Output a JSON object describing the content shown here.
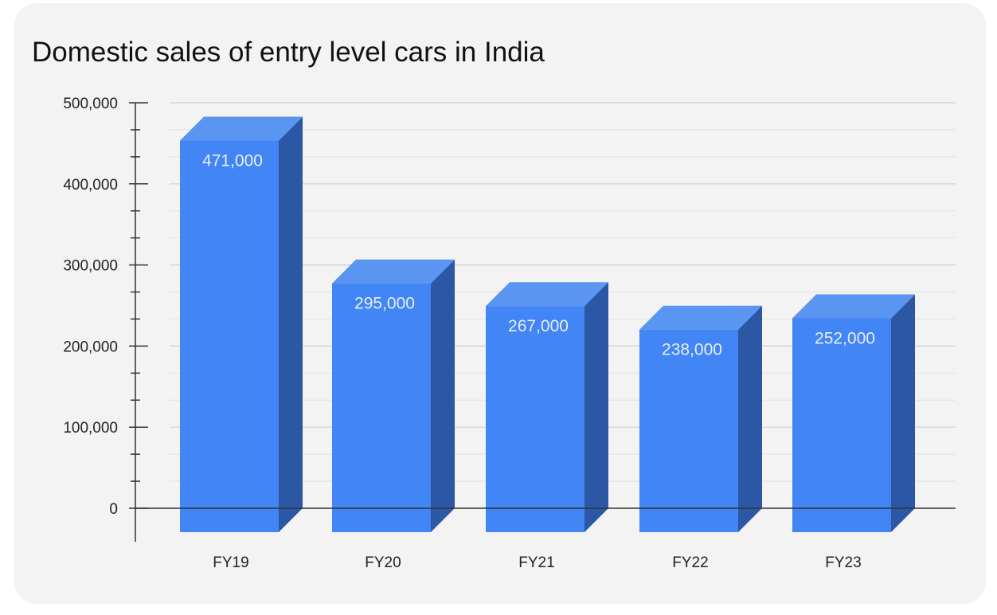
{
  "colors": {
    "card_background": "#f3f3f4",
    "bar_front": "#4285f4",
    "bar_top": "#5b95f2",
    "bar_side": "#2b57a4",
    "gridline": "#d0d0d0",
    "baseline": "#333333",
    "data_label": "#e8eefc"
  },
  "chart_data": {
    "type": "bar",
    "style": "3d",
    "title": "Domestic sales of entry level cars in India",
    "xlabel": "",
    "ylabel": "",
    "categories": [
      "FY19",
      "FY20",
      "FY21",
      "FY22",
      "FY23"
    ],
    "values": [
      471000,
      295000,
      267000,
      238000,
      252000
    ],
    "data_labels": [
      "471,000",
      "295,000",
      "267,000",
      "238,000",
      "252,000"
    ],
    "ylim": [
      0,
      500000
    ],
    "yticks": [
      0,
      100000,
      200000,
      300000,
      400000,
      500000
    ],
    "ytick_labels": [
      "0",
      "100,000",
      "200,000",
      "300,000",
      "400,000",
      "500,000"
    ],
    "grid": true,
    "legend": "none"
  }
}
